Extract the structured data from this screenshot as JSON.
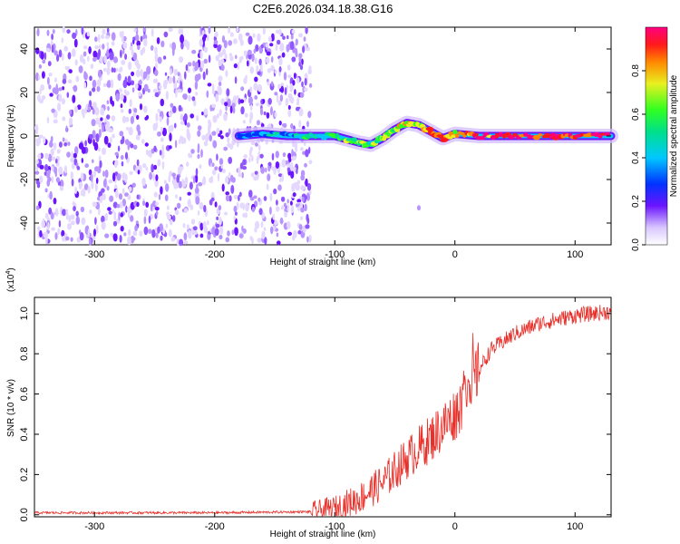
{
  "title": "C2E6.2026.034.18.38.G16",
  "colors": {
    "snr_line": "#e8302a",
    "axis": "#000000"
  },
  "chart_data": [
    {
      "type": "heatmap",
      "name": "spectrogram",
      "xlabel": "Height of straight line (km)",
      "ylabel": "Frequency (Hz)",
      "xlim": [
        -350,
        130
      ],
      "ylim": [
        -50,
        50
      ],
      "x_ticks": [
        -300,
        -200,
        -100,
        0,
        100
      ],
      "x_tick_labels": [
        "-300",
        "-200",
        "-100",
        "0",
        "100"
      ],
      "y_ticks": [
        -40,
        -20,
        0,
        20,
        40
      ],
      "y_tick_labels": [
        "-40",
        "-20",
        "0",
        "20",
        "40"
      ],
      "noise_region_end_km": -120,
      "ridge": {
        "x_km": [
          -180,
          -160,
          -140,
          -120,
          -100,
          -80,
          -70,
          -60,
          -50,
          -40,
          -30,
          -20,
          -10,
          0,
          20,
          50,
          80,
          100,
          130
        ],
        "freq_hz": [
          0,
          1,
          0,
          0,
          0,
          -3,
          -4,
          -1,
          3,
          6,
          5,
          2,
          -1,
          1,
          0,
          0,
          0,
          0,
          0
        ],
        "amplitude": [
          0.2,
          0.25,
          0.3,
          0.45,
          0.5,
          0.55,
          0.5,
          0.6,
          0.6,
          0.7,
          0.65,
          0.75,
          0.8,
          0.7,
          0.85,
          0.9,
          0.92,
          0.9,
          0.85
        ]
      },
      "colorbar": {
        "label": "Normalized spectral amplitude",
        "range": [
          0,
          1
        ],
        "ticks": [
          0.0,
          0.2,
          0.4,
          0.6,
          0.8
        ],
        "tick_labels": [
          "0.0",
          "0.2",
          "0.4",
          "0.6",
          "0.8"
        ]
      }
    },
    {
      "type": "line",
      "name": "snr",
      "xlabel": "Height of straight line (km)",
      "ylabel": "SNR (10 * v/v)",
      "scale_label_base": "(x10",
      "scale_label_exp": "4",
      "scale_label_close": ")",
      "xlim": [
        -350,
        130
      ],
      "ylim": [
        -0.01,
        1.08
      ],
      "x_ticks": [
        -300,
        -200,
        -100,
        0,
        100
      ],
      "x_tick_labels": [
        "-300",
        "-200",
        "-100",
        "0",
        "100"
      ],
      "y_ticks": [
        0.0,
        0.2,
        0.4,
        0.6,
        0.8,
        1.0
      ],
      "y_tick_labels": [
        "0.0",
        "0.2",
        "0.4",
        "0.6",
        "0.8",
        "1.0"
      ],
      "trend": {
        "x_km": [
          -350,
          -200,
          -120,
          -100,
          -80,
          -60,
          -40,
          -20,
          0,
          10,
          20,
          30,
          50,
          70,
          100,
          130
        ],
        "snr": [
          0.01,
          0.01,
          0.015,
          0.03,
          0.08,
          0.16,
          0.28,
          0.38,
          0.5,
          0.6,
          0.72,
          0.82,
          0.9,
          0.95,
          0.99,
          1.01
        ]
      }
    }
  ]
}
